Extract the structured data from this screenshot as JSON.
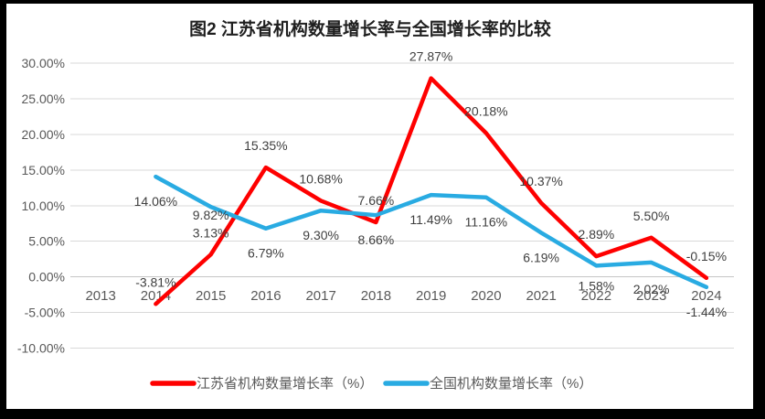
{
  "title": "图2  江苏省机构数量增长率与全国增长率的比较",
  "colors": {
    "page_background": "#000000",
    "chart_background": "#FFFFFF",
    "gridline": "#D9D9D9",
    "zero_line": "#C6C6C6",
    "jiangsu_line": "#FE0000",
    "national_line": "#29ABE2",
    "tick_text": "#595959",
    "data_label_text": "#3F3F3F"
  },
  "chart_data": {
    "type": "line",
    "title": "图2  江苏省机构数量增长率与全国增长率的比较",
    "categories": [
      "2013",
      "2014",
      "2015",
      "2016",
      "2017",
      "2018",
      "2019",
      "2020",
      "2021",
      "2022",
      "2023",
      "2024"
    ],
    "series": [
      {
        "name": "江苏省机构数量增长率（%）",
        "semantic": "jiangsu",
        "color": "#FE0000",
        "values": [
          null,
          -3.81,
          3.13,
          15.35,
          10.68,
          7.66,
          27.87,
          20.18,
          10.37,
          2.89,
          5.5,
          -0.15
        ],
        "label_position": "above",
        "label_dy": -24,
        "label_overrides": []
      },
      {
        "name": "全国机构数量增长率（%）",
        "semantic": "national",
        "color": "#29ABE2",
        "values": [
          null,
          14.06,
          9.82,
          6.79,
          9.3,
          8.66,
          11.49,
          11.16,
          6.19,
          1.58,
          2.02,
          -1.44
        ],
        "label_position": "below",
        "label_dy": 27,
        "label_overrides": [
          {
            "index": 2,
            "dy": 9
          },
          {
            "index": 9,
            "dy": 22
          },
          {
            "index": 10,
            "dy": 29
          }
        ]
      }
    ],
    "ylim": [
      -10,
      30
    ],
    "ytick_step": 5,
    "ytick_format": "0.00%",
    "data_label_format": "0.00%",
    "grid": true,
    "legend_position": "bottom"
  }
}
